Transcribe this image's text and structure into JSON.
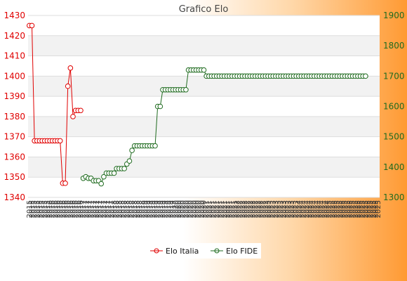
{
  "chart_data": {
    "type": "line",
    "title": "Grafico Elo",
    "xlabel": "",
    "ylabel_left": "",
    "ylabel_right": "",
    "x_tick_labels": [
      "2015",
      "2015",
      "2015",
      "2015",
      "2015",
      "2015",
      "2015",
      "2015",
      "2016",
      "2016",
      "2016",
      "2016",
      "2016",
      "2016",
      "2016",
      "2016",
      "2016",
      "2016",
      "2016",
      "2016",
      "2016",
      "2017",
      "2017",
      "2017",
      "2017",
      "2017",
      "2017",
      "2017",
      "2017",
      "2017",
      "2017",
      "2017",
      "2017",
      "2018",
      "2018",
      "2018",
      "2018",
      "2018",
      "2018",
      "2018",
      "2018",
      "2018",
      "2018",
      "2018",
      "2018",
      "2019",
      "2019",
      "2019",
      "2019",
      "2019",
      "2019",
      "2019",
      "2019",
      "2019",
      "2019",
      "2019",
      "2019",
      "2020",
      "2020",
      "2020",
      "2020",
      "2020",
      "2020",
      "2020",
      "2020",
      "2020",
      "2020",
      "2020",
      "2020",
      "2021",
      "2021",
      "2021",
      "2021",
      "2021",
      "2021",
      "2021",
      "2021",
      "2021",
      "2021",
      "2021",
      "2021",
      "2022",
      "2022",
      "2022",
      "2022",
      "2022",
      "2022",
      "2022",
      "2022",
      "2022",
      "2022",
      "2022",
      "2022",
      "2023",
      "2023",
      "2023",
      "2023",
      "2023",
      "2023",
      "2023",
      "2023",
      "2023",
      "2023",
      "2023",
      "2023",
      "2024",
      "2024",
      "2024",
      "2024",
      "2024",
      "2024",
      "2024",
      "2024",
      "2024",
      "2024",
      "2024",
      "2024",
      "2025",
      "2025",
      "2025",
      "2025",
      "2025",
      "2025",
      "2025",
      "2025",
      "2025",
      "2025",
      "2025",
      "2025",
      "2025",
      "2025",
      "2025",
      "2025",
      "2025",
      "2025",
      "2025",
      "2025"
    ],
    "y_left": {
      "min": 1340,
      "max": 1430,
      "ticks": [
        1340,
        1350,
        1360,
        1370,
        1380,
        1390,
        1400,
        1410,
        1420,
        1430
      ]
    },
    "y_right": {
      "min": 1300,
      "max": 1900,
      "ticks": [
        1300,
        1400,
        1500,
        1600,
        1700,
        1800,
        1900
      ]
    },
    "grid": true,
    "legend_position": "bottom",
    "colors": {
      "italia": "#e00000",
      "fide": "#1f6b1f"
    },
    "series": [
      {
        "name": "Elo Italia",
        "axis": "left",
        "values": [
          1425,
          1425,
          1368,
          1368,
          1368,
          1368,
          1368,
          1368,
          1368,
          1368,
          1368,
          1368,
          1368,
          1347,
          1347,
          1395,
          1404,
          1380,
          1383,
          1383,
          1383
        ]
      },
      {
        "name": "Elo FIDE",
        "axis": "right",
        "values": [
          null,
          null,
          null,
          null,
          null,
          null,
          null,
          null,
          null,
          null,
          null,
          null,
          null,
          null,
          null,
          null,
          null,
          null,
          null,
          null,
          null,
          1363,
          1368,
          1363,
          1363,
          1355,
          1355,
          1355,
          1345,
          1368,
          1380,
          1380,
          1380,
          1380,
          1395,
          1395,
          1395,
          1395,
          1410,
          1420,
          1455,
          1470,
          1470,
          1470,
          1470,
          1470,
          1470,
          1470,
          1470,
          1470,
          1600,
          1600,
          1655,
          1655,
          1655,
          1655,
          1655,
          1655,
          1655,
          1655,
          1655,
          1655,
          1720,
          1720,
          1720,
          1720,
          1720,
          1720,
          1720,
          1700,
          1700,
          1700,
          1700,
          1700,
          1700,
          1700,
          1700,
          1700,
          1700,
          1700,
          1700,
          1700,
          1700,
          1700,
          1700,
          1700,
          1700,
          1700,
          1700,
          1700,
          1700,
          1700,
          1700,
          1700,
          1700,
          1700,
          1700,
          1700,
          1700,
          1700,
          1700,
          1700,
          1700,
          1700,
          1700,
          1700,
          1700,
          1700,
          1700,
          1700,
          1700,
          1700,
          1700,
          1700,
          1700,
          1700,
          1700,
          1700,
          1700,
          1700,
          1700,
          1700,
          1700,
          1700,
          1700,
          1700,
          1700,
          1700,
          1700,
          1700,
          1700,
          1700
        ]
      }
    ]
  },
  "legend": {
    "italia_label": "Elo Italia",
    "fide_label": "Elo FIDE"
  }
}
